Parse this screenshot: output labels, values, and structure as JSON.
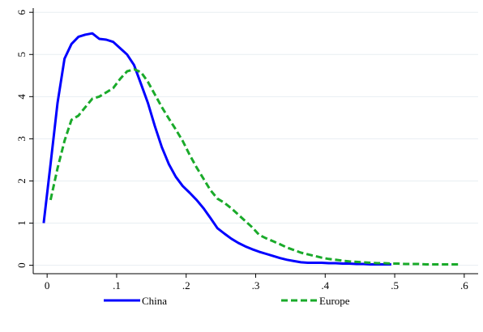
{
  "chart_data": {
    "type": "line",
    "title": "",
    "xlabel": "",
    "ylabel": "",
    "xlim": [
      -0.02,
      0.62
    ],
    "ylim": [
      -0.2,
      6.1
    ],
    "xticks": [
      0,
      0.1,
      0.2,
      0.3,
      0.4,
      0.5,
      0.6
    ],
    "xtick_labels": [
      "0",
      ".1",
      ".2",
      ".3",
      ".4",
      ".5",
      ".6"
    ],
    "yticks": [
      0,
      1,
      2,
      3,
      4,
      5,
      6
    ],
    "ytick_labels": [
      "0",
      "1",
      "2",
      "3",
      "4",
      "5",
      "6"
    ],
    "grid": "horizontal",
    "legend_position": "bottom",
    "series": [
      {
        "name": "China",
        "color": "#0000ff",
        "style": "solid",
        "x": [
          -0.005,
          0.005,
          0.015,
          0.025,
          0.035,
          0.045,
          0.055,
          0.065,
          0.075,
          0.085,
          0.095,
          0.105,
          0.115,
          0.125,
          0.135,
          0.145,
          0.155,
          0.165,
          0.175,
          0.185,
          0.195,
          0.205,
          0.215,
          0.225,
          0.235,
          0.245,
          0.255,
          0.265,
          0.275,
          0.285,
          0.295,
          0.305,
          0.315,
          0.325,
          0.335,
          0.345,
          0.355,
          0.365,
          0.375,
          0.385,
          0.395,
          0.405,
          0.415,
          0.425,
          0.435,
          0.445,
          0.455,
          0.465,
          0.475,
          0.485,
          0.495
        ],
        "y": [
          1.0,
          2.4,
          3.85,
          4.9,
          5.25,
          5.42,
          5.47,
          5.5,
          5.37,
          5.35,
          5.3,
          5.15,
          5.0,
          4.75,
          4.3,
          3.85,
          3.3,
          2.8,
          2.4,
          2.1,
          1.88,
          1.72,
          1.55,
          1.35,
          1.12,
          0.88,
          0.75,
          0.63,
          0.53,
          0.45,
          0.38,
          0.32,
          0.27,
          0.22,
          0.17,
          0.13,
          0.1,
          0.07,
          0.06,
          0.06,
          0.06,
          0.05,
          0.05,
          0.04,
          0.04,
          0.03,
          0.03,
          0.02,
          0.02,
          0.02,
          0.02
        ]
      },
      {
        "name": "Europe",
        "color": "#1aaa2a",
        "style": "dashed",
        "x": [
          0.005,
          0.015,
          0.025,
          0.035,
          0.045,
          0.055,
          0.065,
          0.075,
          0.085,
          0.095,
          0.105,
          0.115,
          0.125,
          0.135,
          0.145,
          0.155,
          0.165,
          0.175,
          0.185,
          0.195,
          0.205,
          0.215,
          0.225,
          0.235,
          0.245,
          0.255,
          0.265,
          0.275,
          0.285,
          0.295,
          0.305,
          0.315,
          0.325,
          0.335,
          0.345,
          0.355,
          0.365,
          0.375,
          0.385,
          0.395,
          0.405,
          0.415,
          0.425,
          0.435,
          0.445,
          0.455,
          0.465,
          0.475,
          0.485,
          0.495,
          0.505,
          0.515,
          0.525,
          0.535,
          0.545,
          0.555,
          0.565,
          0.575,
          0.585,
          0.595
        ],
        "y": [
          1.55,
          2.3,
          2.95,
          3.45,
          3.55,
          3.75,
          3.95,
          4.0,
          4.1,
          4.2,
          4.42,
          4.6,
          4.65,
          4.58,
          4.35,
          4.05,
          3.75,
          3.48,
          3.22,
          2.95,
          2.62,
          2.32,
          2.05,
          1.78,
          1.58,
          1.48,
          1.35,
          1.2,
          1.05,
          0.9,
          0.72,
          0.64,
          0.57,
          0.5,
          0.42,
          0.36,
          0.3,
          0.26,
          0.22,
          0.18,
          0.15,
          0.13,
          0.11,
          0.09,
          0.08,
          0.07,
          0.06,
          0.05,
          0.05,
          0.04,
          0.04,
          0.03,
          0.03,
          0.03,
          0.02,
          0.02,
          0.02,
          0.02,
          0.02,
          0.02
        ]
      }
    ]
  }
}
